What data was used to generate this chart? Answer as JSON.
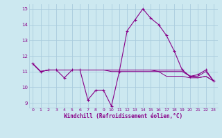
{
  "xlabel": "Windchill (Refroidissement éolien,°C)",
  "bg_color": "#cce8f0",
  "grid_color": "#aaccdd",
  "line_color_main": "#880088",
  "line_color_flat": "#880088",
  "xlim": [
    -0.5,
    23.5
  ],
  "ylim": [
    8.7,
    15.3
  ],
  "yticks": [
    9,
    10,
    11,
    12,
    13,
    14,
    15
  ],
  "xticks": [
    0,
    1,
    2,
    3,
    4,
    5,
    6,
    7,
    8,
    9,
    10,
    11,
    12,
    13,
    14,
    15,
    16,
    17,
    18,
    19,
    20,
    21,
    22,
    23
  ],
  "windchill": [
    11.5,
    11.0,
    11.1,
    11.1,
    10.6,
    11.1,
    11.1,
    9.2,
    9.8,
    9.8,
    8.8,
    11.0,
    13.6,
    14.3,
    15.0,
    14.4,
    14.0,
    13.3,
    12.3,
    11.1,
    10.7,
    10.8,
    11.1,
    10.4
  ],
  "flat1": [
    11.5,
    11.0,
    11.1,
    11.1,
    11.1,
    11.1,
    11.1,
    11.1,
    11.1,
    11.1,
    11.0,
    11.0,
    11.0,
    11.0,
    11.0,
    11.0,
    11.0,
    11.0,
    11.0,
    11.0,
    10.7,
    10.6,
    10.7,
    10.4
  ],
  "flat2": [
    11.5,
    11.0,
    11.1,
    11.1,
    11.1,
    11.1,
    11.1,
    11.1,
    11.1,
    11.1,
    11.1,
    11.1,
    11.1,
    11.1,
    11.1,
    11.1,
    11.0,
    10.7,
    10.7,
    10.7,
    10.6,
    10.6,
    10.7,
    10.4
  ],
  "flat3": [
    11.5,
    11.0,
    11.1,
    11.1,
    11.1,
    11.1,
    11.1,
    11.1,
    11.1,
    11.1,
    11.1,
    11.1,
    11.1,
    11.1,
    11.1,
    11.1,
    11.1,
    11.1,
    11.1,
    11.1,
    10.7,
    10.7,
    11.0,
    10.4
  ]
}
